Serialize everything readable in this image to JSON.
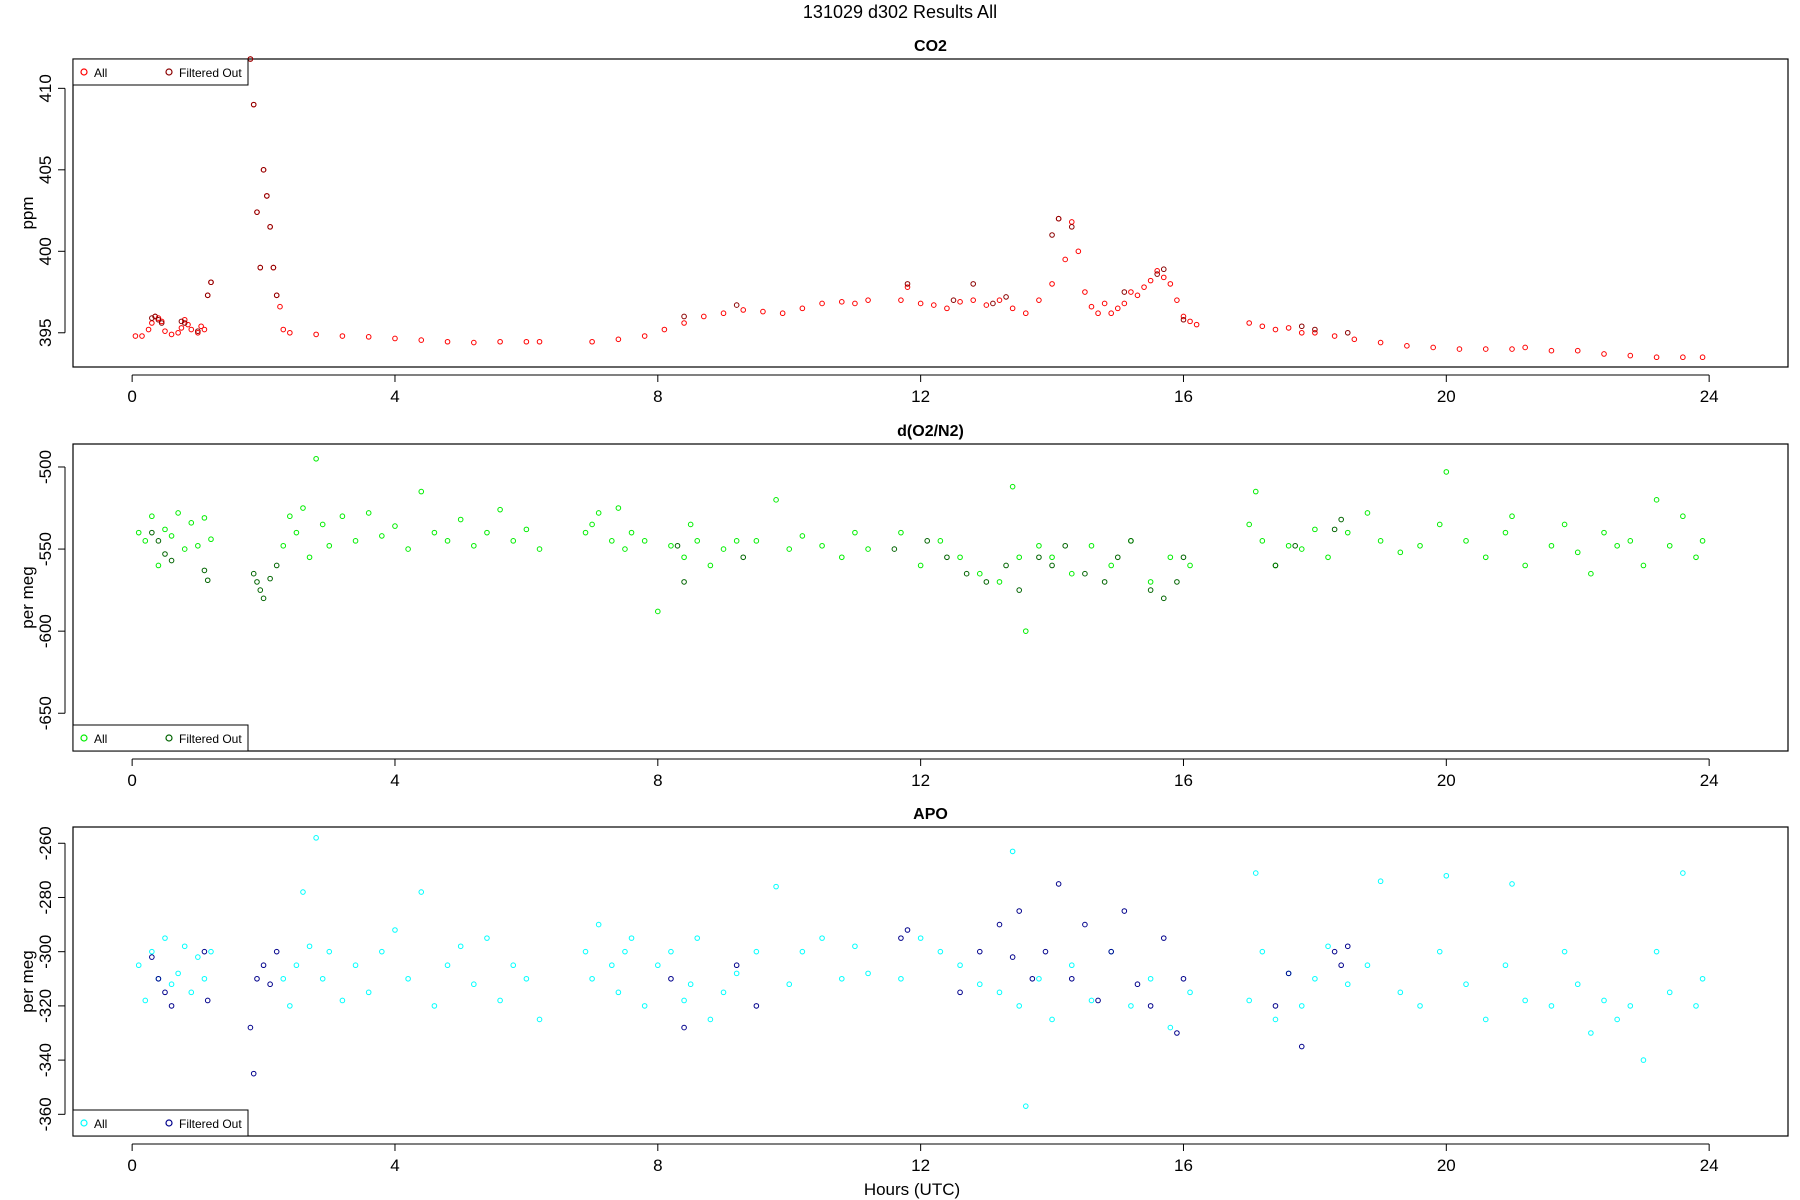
{
  "figure_title": "131029   d302   Results All",
  "xlabel": "Hours (UTC)",
  "x_ticks": [
    0,
    4,
    8,
    12,
    16,
    20,
    24
  ],
  "xlim": [
    -0.9,
    25.2
  ],
  "colors": {
    "co2_all": "#ff0000",
    "co2_filtered": "#8b0000",
    "o2_all": "#00ee00",
    "o2_filtered": "#006400",
    "apo_all": "#00ffff",
    "apo_filtered": "#00008b"
  },
  "chart_data": [
    {
      "type": "scatter",
      "title": "CO2",
      "ylabel": "ppm",
      "ylim": [
        392.9,
        411.8
      ],
      "y_ticks": [
        395,
        400,
        405,
        410
      ],
      "legend": {
        "placement": "top-left",
        "all_label": "All",
        "filtered_label": "Filtered Out"
      },
      "series": [
        {
          "name": "All",
          "role": "all",
          "x": [
            0.05,
            0.15,
            0.25,
            0.3,
            0.35,
            0.4,
            0.45,
            0.5,
            0.6,
            0.7,
            0.75,
            0.8,
            0.85,
            0.9,
            1.0,
            1.05,
            1.1,
            1.15,
            1.2,
            1.8,
            1.85,
            1.9,
            1.95,
            2.0,
            2.05,
            2.1,
            2.15,
            2.2,
            2.25,
            2.3,
            2.4,
            2.8,
            3.2,
            3.6,
            4.0,
            4.4,
            4.8,
            5.2,
            5.6,
            6.0,
            6.2,
            7.0,
            7.4,
            7.8,
            8.1,
            8.4,
            8.7,
            9.0,
            9.3,
            9.6,
            9.9,
            10.2,
            10.5,
            10.8,
            11.0,
            11.2,
            11.7,
            11.8,
            12.0,
            12.2,
            12.4,
            12.6,
            12.8,
            13.0,
            13.2,
            13.4,
            13.6,
            13.8,
            14.0,
            14.1,
            14.2,
            14.3,
            14.4,
            14.5,
            14.6,
            14.7,
            14.8,
            14.9,
            15.0,
            15.1,
            15.2,
            15.3,
            15.4,
            15.5,
            15.6,
            15.7,
            15.8,
            15.9,
            16.0,
            16.1,
            16.2,
            17.0,
            17.2,
            17.4,
            17.6,
            17.8,
            18.0,
            18.3,
            18.6,
            19.0,
            19.4,
            19.8,
            20.2,
            20.6,
            21.0,
            21.2,
            21.6,
            22.0,
            22.4,
            22.8,
            23.2,
            23.6,
            23.9
          ],
          "y": [
            394.8,
            394.8,
            395.2,
            395.6,
            396.0,
            395.9,
            395.7,
            395.1,
            394.9,
            395.0,
            395.3,
            395.8,
            395.5,
            395.2,
            395.0,
            395.4,
            395.2,
            397.3,
            398.1,
            411.8,
            409.0,
            402.4,
            399.0,
            405.0,
            403.4,
            401.5,
            399.0,
            397.3,
            396.6,
            395.2,
            395.0,
            394.9,
            394.8,
            394.75,
            394.65,
            394.55,
            394.45,
            394.4,
            394.45,
            394.45,
            394.45,
            394.45,
            394.6,
            394.8,
            395.2,
            395.6,
            396.0,
            396.2,
            396.4,
            396.3,
            396.2,
            396.5,
            396.8,
            396.9,
            396.8,
            397.0,
            397.0,
            397.8,
            396.8,
            396.7,
            396.5,
            396.9,
            397.0,
            396.7,
            397.0,
            396.5,
            396.2,
            397.0,
            398.0,
            402.0,
            399.5,
            401.8,
            400.0,
            397.5,
            396.6,
            396.2,
            396.8,
            396.2,
            396.5,
            396.8,
            397.5,
            397.3,
            397.8,
            398.2,
            398.8,
            398.4,
            398.0,
            397.0,
            396.0,
            395.7,
            395.5,
            395.6,
            395.4,
            395.2,
            395.3,
            395.0,
            395.0,
            394.8,
            394.6,
            394.4,
            394.2,
            394.1,
            394.0,
            394.0,
            394.0,
            394.1,
            393.9,
            393.9,
            393.7,
            393.6,
            393.5,
            393.5,
            393.5
          ]
        },
        {
          "name": "Filtered Out",
          "role": "filtered",
          "x": [
            0.3,
            0.35,
            0.4,
            0.45,
            0.75,
            0.8,
            1.0,
            1.15,
            1.2,
            1.8,
            1.85,
            1.9,
            1.95,
            2.0,
            2.05,
            2.1,
            2.15,
            2.2,
            8.4,
            9.2,
            11.8,
            12.5,
            12.8,
            13.1,
            13.3,
            14.0,
            14.1,
            14.3,
            15.1,
            15.6,
            15.7,
            16.0,
            17.8,
            18.0,
            18.5
          ],
          "y": [
            395.9,
            396.0,
            395.8,
            395.6,
            395.7,
            395.6,
            395.1,
            397.3,
            398.1,
            411.8,
            409.0,
            402.4,
            399.0,
            405.0,
            403.4,
            401.5,
            399.0,
            397.3,
            396.0,
            396.7,
            398.0,
            397.0,
            398.0,
            396.8,
            397.2,
            401.0,
            402.0,
            401.5,
            397.5,
            398.6,
            398.9,
            395.8,
            395.4,
            395.2,
            395.0
          ]
        }
      ]
    },
    {
      "type": "scatter",
      "title": "d(O2/N2)",
      "ylabel": "per meg",
      "ylim": [
        -673,
        -486
      ],
      "y_ticks": [
        -500,
        -550,
        -600,
        -650
      ],
      "legend": {
        "placement": "bottom-left",
        "all_label": "All",
        "filtered_label": "Filtered Out"
      },
      "series": [
        {
          "name": "All",
          "role": "all",
          "x": [
            0.1,
            0.2,
            0.3,
            0.4,
            0.5,
            0.6,
            0.7,
            0.8,
            0.9,
            1.0,
            1.1,
            1.2,
            2.3,
            2.4,
            2.5,
            2.6,
            2.7,
            2.8,
            2.9,
            3.0,
            3.2,
            3.4,
            3.6,
            3.8,
            4.0,
            4.2,
            4.4,
            4.6,
            4.8,
            5.0,
            5.2,
            5.4,
            5.6,
            5.8,
            6.0,
            6.2,
            6.9,
            7.0,
            7.1,
            7.3,
            7.4,
            7.5,
            7.6,
            7.8,
            8.0,
            8.2,
            8.4,
            8.5,
            8.6,
            8.8,
            9.0,
            9.2,
            9.5,
            9.8,
            10.0,
            10.2,
            10.5,
            10.8,
            11.0,
            11.2,
            11.7,
            12.0,
            12.3,
            12.6,
            12.9,
            13.2,
            13.4,
            13.5,
            13.6,
            13.8,
            14.0,
            14.3,
            14.6,
            14.9,
            15.2,
            15.5,
            15.8,
            16.1,
            17.0,
            17.1,
            17.2,
            17.4,
            17.6,
            17.8,
            18.0,
            18.2,
            18.5,
            18.8,
            19.0,
            19.3,
            19.6,
            19.9,
            20.0,
            20.3,
            20.6,
            20.9,
            21.0,
            21.2,
            21.6,
            21.8,
            22.0,
            22.2,
            22.4,
            22.6,
            22.8,
            23.0,
            23.2,
            23.4,
            23.6,
            23.8,
            23.9
          ],
          "y": [
            -540,
            -545,
            -530,
            -560,
            -538,
            -542,
            -528,
            -550,
            -534,
            -548,
            -531,
            -544,
            -548,
            -530,
            -540,
            -525,
            -555,
            -495,
            -535,
            -548,
            -530,
            -545,
            -528,
            -542,
            -536,
            -550,
            -515,
            -540,
            -545,
            -532,
            -548,
            -540,
            -526,
            -545,
            -538,
            -550,
            -540,
            -535,
            -528,
            -545,
            -525,
            -550,
            -540,
            -545,
            -588,
            -548,
            -555,
            -535,
            -545,
            -560,
            -550,
            -545,
            -545,
            -520,
            -550,
            -542,
            -548,
            -555,
            -540,
            -550,
            -540,
            -560,
            -545,
            -555,
            -565,
            -570,
            -512,
            -555,
            -600,
            -548,
            -555,
            -565,
            -548,
            -560,
            -545,
            -570,
            -555,
            -560,
            -535,
            -515,
            -545,
            -560,
            -548,
            -550,
            -538,
            -555,
            -540,
            -528,
            -545,
            -552,
            -548,
            -535,
            -503,
            -545,
            -555,
            -540,
            -530,
            -560,
            -548,
            -535,
            -552,
            -565,
            -540,
            -548,
            -545,
            -560,
            -520,
            -548,
            -530,
            -555,
            -545
          ]
        },
        {
          "name": "Filtered Out",
          "role": "filtered",
          "x": [
            0.3,
            0.4,
            0.5,
            0.6,
            1.1,
            1.15,
            1.85,
            1.9,
            1.95,
            2.0,
            2.1,
            2.2,
            8.3,
            8.4,
            9.3,
            11.6,
            12.1,
            12.4,
            12.7,
            13.0,
            13.3,
            13.5,
            13.8,
            14.0,
            14.2,
            14.5,
            14.8,
            15.0,
            15.2,
            15.5,
            15.7,
            15.9,
            16.0,
            17.4,
            17.7,
            18.3,
            18.4
          ],
          "y": [
            -540,
            -545,
            -553,
            -557,
            -563,
            -569,
            -565,
            -570,
            -575,
            -580,
            -568,
            -560,
            -548,
            -570,
            -555,
            -550,
            -545,
            -555,
            -565,
            -570,
            -560,
            -575,
            -555,
            -560,
            -548,
            -565,
            -570,
            -555,
            -545,
            -575,
            -580,
            -570,
            -555,
            -560,
            -548,
            -538,
            -532
          ]
        }
      ]
    },
    {
      "type": "scatter",
      "title": "APO",
      "ylabel": "per meg",
      "ylim": [
        -368,
        -254
      ],
      "y_ticks": [
        -260,
        -280,
        -300,
        -320,
        -340,
        -360
      ],
      "legend": {
        "placement": "bottom-left",
        "all_label": "All",
        "filtered_label": "Filtered Out"
      },
      "series": [
        {
          "name": "All",
          "role": "all",
          "x": [
            0.1,
            0.2,
            0.3,
            0.4,
            0.5,
            0.6,
            0.7,
            0.8,
            0.9,
            1.0,
            1.1,
            1.2,
            2.3,
            2.4,
            2.5,
            2.6,
            2.7,
            2.8,
            2.9,
            3.0,
            3.2,
            3.4,
            3.6,
            3.8,
            4.0,
            4.2,
            4.4,
            4.6,
            4.8,
            5.0,
            5.2,
            5.4,
            5.6,
            5.8,
            6.0,
            6.2,
            6.9,
            7.0,
            7.1,
            7.3,
            7.4,
            7.5,
            7.6,
            7.8,
            8.0,
            8.2,
            8.4,
            8.5,
            8.6,
            8.8,
            9.0,
            9.2,
            9.5,
            9.8,
            10.0,
            10.2,
            10.5,
            10.8,
            11.0,
            11.2,
            11.7,
            12.0,
            12.3,
            12.6,
            12.9,
            13.2,
            13.4,
            13.5,
            13.6,
            13.8,
            14.0,
            14.3,
            14.6,
            14.9,
            15.2,
            15.5,
            15.8,
            16.1,
            17.0,
            17.1,
            17.2,
            17.4,
            17.6,
            17.8,
            18.0,
            18.2,
            18.5,
            18.8,
            19.0,
            19.3,
            19.6,
            19.9,
            20.0,
            20.3,
            20.6,
            20.9,
            21.0,
            21.2,
            21.6,
            21.8,
            22.0,
            22.2,
            22.4,
            22.6,
            22.8,
            23.0,
            23.2,
            23.4,
            23.6,
            23.8,
            23.9
          ],
          "y": [
            -305,
            -318,
            -300,
            -310,
            -295,
            -312,
            -308,
            -298,
            -315,
            -302,
            -310,
            -300,
            -310,
            -320,
            -305,
            -278,
            -298,
            -258,
            -310,
            -300,
            -318,
            -305,
            -315,
            -300,
            -292,
            -310,
            -278,
            -320,
            -305,
            -298,
            -312,
            -295,
            -318,
            -305,
            -310,
            -325,
            -300,
            -310,
            -290,
            -305,
            -315,
            -300,
            -295,
            -320,
            -305,
            -300,
            -318,
            -312,
            -295,
            -325,
            -315,
            -308,
            -300,
            -276,
            -312,
            -300,
            -295,
            -310,
            -298,
            -308,
            -310,
            -295,
            -300,
            -305,
            -312,
            -315,
            -263,
            -320,
            -357,
            -310,
            -325,
            -305,
            -318,
            -300,
            -320,
            -310,
            -328,
            -315,
            -318,
            -271,
            -300,
            -325,
            -308,
            -320,
            -310,
            -298,
            -312,
            -305,
            -274,
            -315,
            -320,
            -300,
            -272,
            -312,
            -325,
            -305,
            -275,
            -318,
            -320,
            -300,
            -312,
            -330,
            -318,
            -325,
            -320,
            -340,
            -300,
            -315,
            -271,
            -320,
            -310
          ]
        },
        {
          "name": "Filtered Out",
          "role": "filtered",
          "x": [
            0.3,
            0.4,
            0.5,
            0.6,
            1.1,
            1.15,
            1.8,
            1.85,
            1.9,
            2.0,
            2.1,
            2.2,
            8.2,
            8.4,
            9.2,
            9.5,
            11.7,
            11.8,
            12.6,
            12.9,
            13.2,
            13.4,
            13.5,
            13.7,
            13.9,
            14.1,
            14.3,
            14.5,
            14.7,
            14.9,
            15.1,
            15.3,
            15.5,
            15.7,
            15.9,
            16.0,
            17.4,
            17.6,
            17.8,
            18.3,
            18.4,
            18.5
          ],
          "y": [
            -302,
            -310,
            -315,
            -320,
            -300,
            -318,
            -328,
            -345,
            -310,
            -305,
            -312,
            -300,
            -310,
            -328,
            -305,
            -320,
            -295,
            -292,
            -315,
            -300,
            -290,
            -302,
            -285,
            -310,
            -300,
            -275,
            -310,
            -290,
            -318,
            -300,
            -285,
            -312,
            -320,
            -295,
            -330,
            -310,
            -320,
            -308,
            -335,
            -300,
            -305,
            -298
          ]
        }
      ]
    }
  ]
}
